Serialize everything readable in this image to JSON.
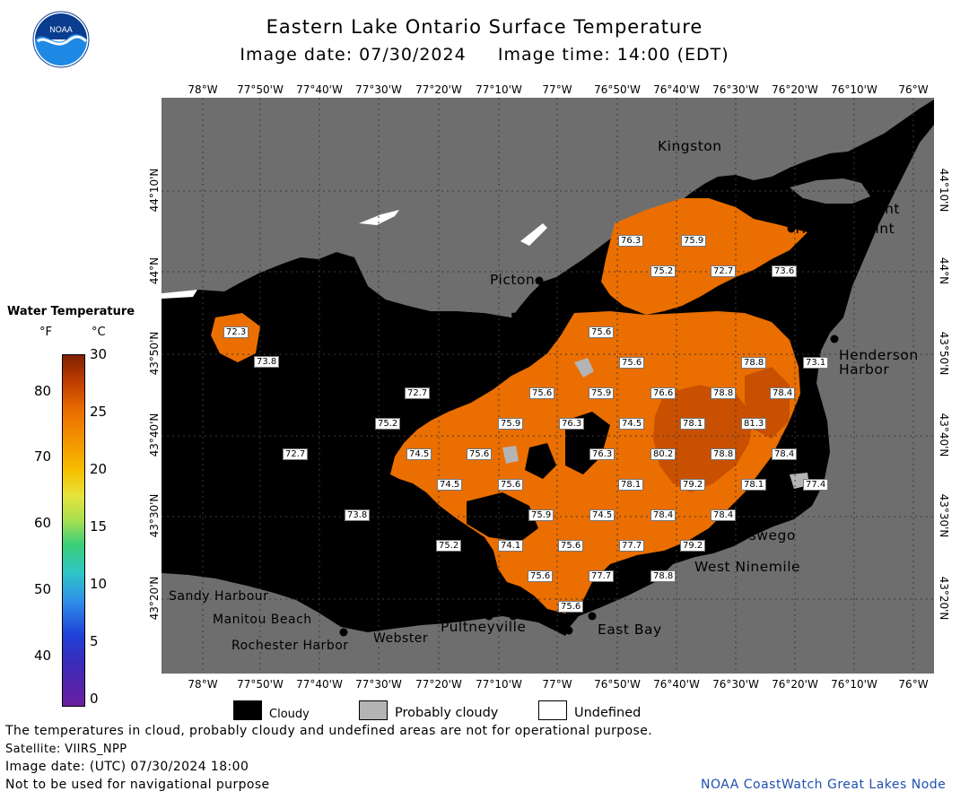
{
  "title": "Eastern Lake Ontario Surface Temperature",
  "subtitle": "Image date: 07/30/2024     Image time: 14:00 (EDT)",
  "logo_text": "NOAA",
  "longitude_labels": [
    "78°W",
    "77°50'W",
    "77°40'W",
    "77°30'W",
    "77°20'W",
    "77°10'W",
    "77°W",
    "76°50'W",
    "76°40'W",
    "76°30'W",
    "76°20'W",
    "76°10'W",
    "76°W"
  ],
  "latitude_labels": [
    "44°10'N",
    "44°N",
    "43°50'N",
    "43°40'N",
    "43°30'N",
    "43°20'N"
  ],
  "cities": {
    "kingston": "Kingston",
    "cape_vincent": "Cape Vincent",
    "tibbetts_point": "Tibbetts Point",
    "picton": "Picton",
    "henderson_harbor_1": "Henderson",
    "henderson_harbor_2": "Harbor",
    "oswego": "Oswego",
    "west_ninemile": "West Ninemile",
    "sandy_harbour": "Sandy Harbour",
    "manitou_beach": "Manitou Beach",
    "rochester_harbor": "Rochester Harbor",
    "webster": "Webster",
    "pultneyville": "Pultneyville",
    "east_bay": "East Bay"
  },
  "temperature_labels": [
    "76.3",
    "75.9",
    "75.2",
    "72.7",
    "73.6",
    "72.3",
    "73.8",
    "75.6",
    "75.6",
    "78.8",
    "73.1",
    "72.7",
    "75.6",
    "75.9",
    "76.6",
    "78.8",
    "78.4",
    "75.2",
    "75.9",
    "76.3",
    "74.5",
    "78.1",
    "81.3",
    "72.7",
    "74.5",
    "75.6",
    "76.3",
    "80.2",
    "78.8",
    "78.4",
    "74.5",
    "75.6",
    "78.1",
    "79.2",
    "78.1",
    "77.4",
    "73.8",
    "75.9",
    "74.5",
    "78.4",
    "78.4",
    "75.2",
    "74.1",
    "75.6",
    "77.7",
    "79.2",
    "75.6",
    "77.7",
    "78.8",
    "75.6"
  ],
  "colorbar": {
    "title": "Water Temperature",
    "unit_f": "°F",
    "unit_c": "°C",
    "fahrenheit_ticks": [
      "80",
      "70",
      "60",
      "50",
      "40"
    ],
    "celsius_ticks": [
      "30",
      "25",
      "20",
      "15",
      "10",
      "5",
      "0"
    ]
  },
  "legend": {
    "cloudy": "Cloudy",
    "probably_cloudy": "Probably cloudy",
    "undefined": "Undefined"
  },
  "footer": {
    "line1": "The temperatures in cloud, probably cloudy and undefined areas are not for operational purpose.",
    "line2": "Satellite: VIIRS_NPP",
    "line3": "Image date: (UTC) 07/30/2024  18:00",
    "line4": "Not to be used for navigational purpose",
    "credit": "NOAA CoastWatch Great Lakes Node"
  },
  "colors": {
    "land": "#6e6e6e",
    "cloud": "#000000",
    "probably_cloud": "#b4b4b4",
    "water_warm": "#ea6e00",
    "water_hot": "#c85000",
    "credit": "#1f4fb0"
  }
}
